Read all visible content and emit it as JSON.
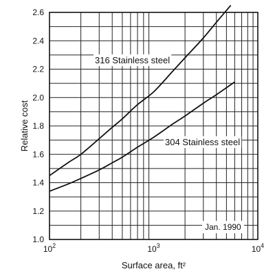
{
  "chart_data": {
    "type": "line",
    "xlabel": "Surface area, ft²",
    "ylabel": "Relative cost",
    "xscale": "log",
    "xlim": [
      100,
      10000
    ],
    "ylim": [
      1.0,
      2.6
    ],
    "x_ticks": [
      {
        "value": 100,
        "base": "10",
        "exp": "2"
      },
      {
        "value": 1000,
        "base": "10",
        "exp": "3"
      },
      {
        "value": 10000,
        "base": "10",
        "exp": "4"
      }
    ],
    "y_ticks": [
      "1.0",
      "1.2",
      "1.4",
      "1.6",
      "1.8",
      "2.0",
      "2.2",
      "2.4",
      "2.6"
    ],
    "grid": true,
    "annotation": "Jan. 1990",
    "series": [
      {
        "name": "316 Stainless steel",
        "x": [
          100,
          150,
          200,
          300,
          400,
          500,
          700,
          1000,
          1500,
          2000,
          3000,
          4000,
          5500
        ],
        "y": [
          1.45,
          1.54,
          1.6,
          1.71,
          1.79,
          1.85,
          1.95,
          2.04,
          2.18,
          2.28,
          2.42,
          2.53,
          2.65
        ]
      },
      {
        "name": "304 Stainless steel",
        "x": [
          100,
          150,
          200,
          300,
          400,
          500,
          700,
          1000,
          1500,
          2000,
          3000,
          4000,
          6000
        ],
        "y": [
          1.34,
          1.39,
          1.43,
          1.49,
          1.54,
          1.58,
          1.65,
          1.72,
          1.81,
          1.87,
          1.96,
          2.02,
          2.11
        ]
      }
    ]
  }
}
